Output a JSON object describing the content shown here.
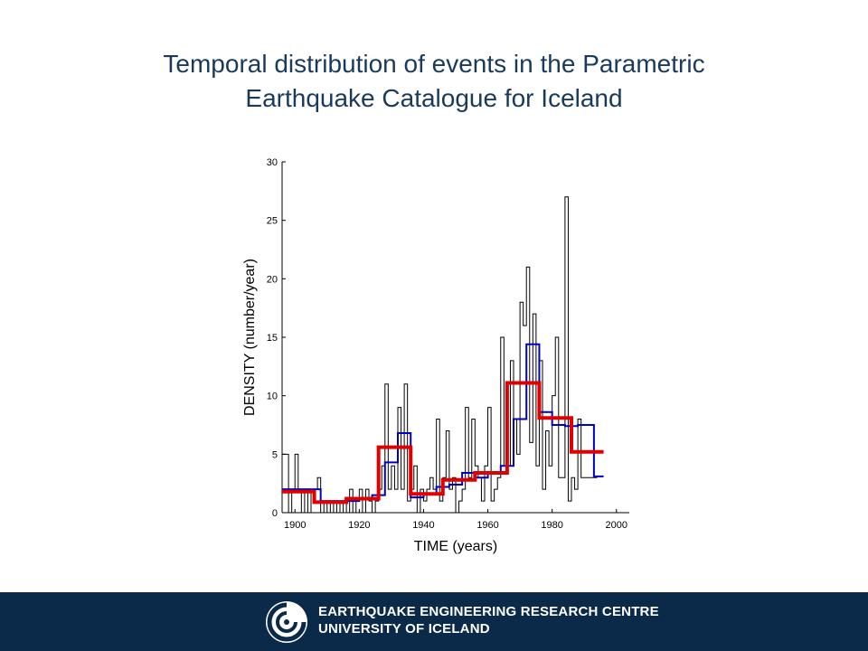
{
  "slide": {
    "title_line1": "Temporal distribution of events in the Parametric",
    "title_line2": "Earthquake Catalogue for Iceland"
  },
  "footer": {
    "org_line1": "EARTHQUAKE ENGINEERING RESEARCH CENTRE",
    "org_line2": "UNIVERSITY OF ICELAND",
    "background_color": "#0b2a4a",
    "logo_icon": "eerc-spiral-logo"
  },
  "chart_data": {
    "type": "line",
    "title": "",
    "xlabel": "TIME (years)",
    "ylabel": "DENSITY (number/year)",
    "xlim": [
      1896,
      2004
    ],
    "ylim": [
      0,
      30
    ],
    "xticks": [
      1900,
      1920,
      1940,
      1960,
      1980,
      2000
    ],
    "yticks": [
      0,
      5,
      10,
      15,
      20,
      25,
      30
    ],
    "grid": false,
    "series": [
      {
        "style": "step",
        "color": "#000000",
        "x": [
          1896,
          1898,
          1899,
          1900,
          1901,
          1902,
          1903,
          1904,
          1905,
          1906,
          1907,
          1908,
          1909,
          1910,
          1911,
          1912,
          1913,
          1914,
          1915,
          1916,
          1917,
          1918,
          1919,
          1920,
          1921,
          1922,
          1923,
          1924,
          1925,
          1926,
          1927,
          1928,
          1929,
          1930,
          1931,
          1932,
          1933,
          1934,
          1935,
          1936,
          1937,
          1938,
          1939,
          1940,
          1941,
          1942,
          1943,
          1944,
          1945,
          1946,
          1947,
          1948,
          1949,
          1950,
          1951,
          1952,
          1953,
          1954,
          1955,
          1956,
          1957,
          1958,
          1959,
          1960,
          1961,
          1962,
          1963,
          1964,
          1965,
          1966,
          1967,
          1968,
          1969,
          1970,
          1971,
          1972,
          1973,
          1974,
          1975,
          1976,
          1977,
          1978,
          1979,
          1980,
          1981,
          1982,
          1983,
          1984,
          1985,
          1986,
          1987,
          1988,
          1989,
          1990,
          1991,
          1992,
          1993,
          1994
        ],
        "values": [
          5,
          0,
          2,
          5,
          2,
          0,
          2,
          0,
          2,
          2,
          3,
          0,
          1,
          0,
          1,
          0,
          1,
          0,
          1,
          0,
          2,
          0,
          1,
          2,
          0,
          2,
          1,
          0,
          1,
          2,
          4,
          11,
          2,
          4,
          2,
          9,
          2,
          11,
          1,
          2,
          4,
          0,
          2,
          1,
          2,
          3,
          2,
          8,
          1,
          3,
          7,
          2,
          3,
          0,
          1,
          2,
          9,
          3,
          8,
          4,
          3,
          1,
          4,
          9,
          1,
          2,
          3,
          15,
          4,
          4,
          13,
          8,
          5,
          18,
          16,
          21,
          6,
          17,
          4,
          13,
          2,
          7,
          4,
          10,
          15,
          3,
          3,
          27,
          1,
          3,
          2,
          8,
          3,
          3,
          3,
          3,
          3,
          3
        ]
      },
      {
        "style": "step",
        "color": "#0000c0",
        "x": [
          1896,
          1901,
          1908,
          1912,
          1920,
          1924,
          1928,
          1932,
          1936,
          1940,
          1944,
          1948,
          1952,
          1956,
          1960,
          1964,
          1968,
          1972,
          1976,
          1980,
          1984,
          1988,
          1993,
          1996
        ],
        "values": [
          2,
          2,
          1,
          1,
          1.2,
          1.5,
          4.3,
          6.8,
          1.3,
          1.6,
          2.2,
          2.4,
          3.4,
          3.0,
          3.4,
          4.0,
          8.0,
          14.4,
          8.6,
          7.5,
          7.4,
          7.5,
          3.1,
          3.1
        ]
      },
      {
        "style": "step",
        "color": "#e00000",
        "x": [
          1896,
          1906,
          1916,
          1926,
          1936,
          1946,
          1956,
          1966,
          1976,
          1986,
          1996
        ],
        "values": [
          1.8,
          0.9,
          1.2,
          5.6,
          1.6,
          2.8,
          3.4,
          11.1,
          8.1,
          5.2,
          5.2
        ]
      }
    ]
  }
}
